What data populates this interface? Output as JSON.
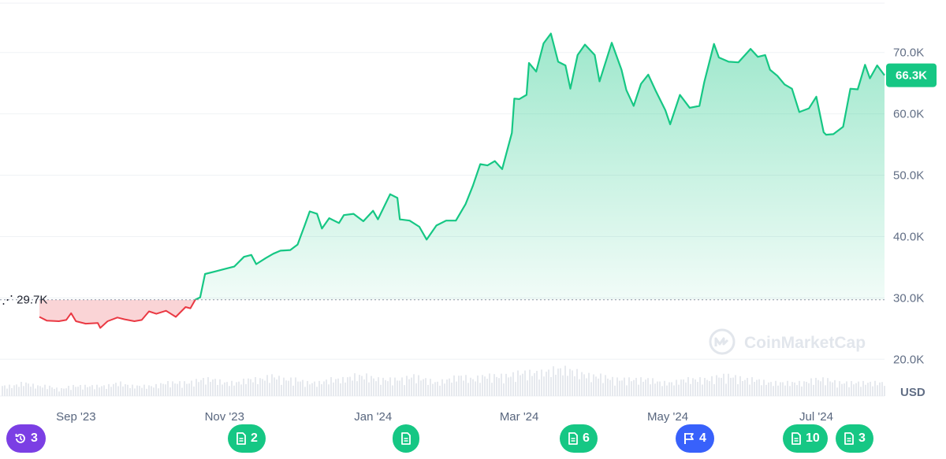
{
  "chart_data": {
    "type": "area",
    "baseline": {
      "value": 29.7,
      "label": "29.7K"
    },
    "current_price": {
      "value": 66.3,
      "label": "66.3K"
    },
    "unit": "USD",
    "ylim": [
      14,
      76
    ],
    "y_ticks": [
      {
        "value": 20,
        "label": "20.0K"
      },
      {
        "value": 30,
        "label": "30.0K"
      },
      {
        "value": 40,
        "label": "40.0K"
      },
      {
        "value": 50,
        "label": "50.0K"
      },
      {
        "value": 60,
        "label": "60.0K"
      },
      {
        "value": 70,
        "label": "70.0K"
      }
    ],
    "x_ticks": [
      "Sep '23",
      "Nov '23",
      "Jan '24",
      "Mar '24",
      "May '24",
      "Jul '24"
    ],
    "x_tick_dates": [
      "2023-09-01",
      "2023-11-01",
      "2024-01-01",
      "2024-03-01",
      "2024-05-01",
      "2024-07-01"
    ],
    "x_start": "2023-08-17",
    "x_end": "2024-07-29",
    "series": [
      {
        "values": [
          [
            "2023-08-17",
            26.9
          ],
          [
            "2023-08-20",
            26.3
          ],
          [
            "2023-08-25",
            26.2
          ],
          [
            "2023-08-28",
            26.4
          ],
          [
            "2023-08-30",
            27.5
          ],
          [
            "2023-09-01",
            26.2
          ],
          [
            "2023-09-05",
            25.8
          ],
          [
            "2023-09-10",
            25.9
          ],
          [
            "2023-09-11",
            25.1
          ],
          [
            "2023-09-14",
            26.2
          ],
          [
            "2023-09-18",
            26.8
          ],
          [
            "2023-09-21",
            26.5
          ],
          [
            "2023-09-25",
            26.2
          ],
          [
            "2023-09-28",
            26.4
          ],
          [
            "2023-10-01",
            27.8
          ],
          [
            "2023-10-04",
            27.4
          ],
          [
            "2023-10-08",
            27.9
          ],
          [
            "2023-10-12",
            26.9
          ],
          [
            "2023-10-16",
            28.5
          ],
          [
            "2023-10-18",
            28.3
          ],
          [
            "2023-10-20",
            29.7
          ],
          [
            "2023-10-22",
            30.1
          ],
          [
            "2023-10-24",
            33.9
          ],
          [
            "2023-10-28",
            34.3
          ],
          [
            "2023-11-01",
            34.7
          ],
          [
            "2023-11-05",
            35.1
          ],
          [
            "2023-11-09",
            36.7
          ],
          [
            "2023-11-12",
            37.0
          ],
          [
            "2023-11-14",
            35.5
          ],
          [
            "2023-11-18",
            36.5
          ],
          [
            "2023-11-21",
            37.2
          ],
          [
            "2023-11-24",
            37.7
          ],
          [
            "2023-11-28",
            37.8
          ],
          [
            "2023-12-01",
            38.7
          ],
          [
            "2023-12-04",
            41.9
          ],
          [
            "2023-12-06",
            44.1
          ],
          [
            "2023-12-09",
            43.7
          ],
          [
            "2023-12-11",
            41.3
          ],
          [
            "2023-12-14",
            43.0
          ],
          [
            "2023-12-18",
            42.2
          ],
          [
            "2023-12-20",
            43.5
          ],
          [
            "2023-12-24",
            43.7
          ],
          [
            "2023-12-28",
            42.5
          ],
          [
            "2024-01-01",
            44.2
          ],
          [
            "2024-01-03",
            42.8
          ],
          [
            "2024-01-08",
            46.9
          ],
          [
            "2024-01-11",
            46.3
          ],
          [
            "2024-01-12",
            42.8
          ],
          [
            "2024-01-16",
            42.6
          ],
          [
            "2024-01-20",
            41.6
          ],
          [
            "2024-01-23",
            39.5
          ],
          [
            "2024-01-27",
            41.8
          ],
          [
            "2024-01-31",
            42.6
          ],
          [
            "2024-02-04",
            42.6
          ],
          [
            "2024-02-08",
            45.3
          ],
          [
            "2024-02-11",
            48.3
          ],
          [
            "2024-02-14",
            51.8
          ],
          [
            "2024-02-17",
            51.6
          ],
          [
            "2024-02-20",
            52.3
          ],
          [
            "2024-02-23",
            51.0
          ],
          [
            "2024-02-27",
            56.9
          ],
          [
            "2024-02-28",
            62.5
          ],
          [
            "2024-03-01",
            62.4
          ],
          [
            "2024-03-04",
            63.1
          ],
          [
            "2024-03-05",
            68.3
          ],
          [
            "2024-03-08",
            66.9
          ],
          [
            "2024-03-11",
            71.5
          ],
          [
            "2024-03-14",
            73.1
          ],
          [
            "2024-03-17",
            68.5
          ],
          [
            "2024-03-20",
            67.9
          ],
          [
            "2024-03-22",
            64.1
          ],
          [
            "2024-03-25",
            69.6
          ],
          [
            "2024-03-28",
            71.3
          ],
          [
            "2024-04-01",
            69.6
          ],
          [
            "2024-04-03",
            65.3
          ],
          [
            "2024-04-08",
            71.6
          ],
          [
            "2024-04-12",
            67.2
          ],
          [
            "2024-04-14",
            63.9
          ],
          [
            "2024-04-17",
            61.3
          ],
          [
            "2024-04-20",
            64.9
          ],
          [
            "2024-04-23",
            66.4
          ],
          [
            "2024-04-26",
            63.8
          ],
          [
            "2024-04-30",
            60.6
          ],
          [
            "2024-05-02",
            58.3
          ],
          [
            "2024-05-06",
            63.1
          ],
          [
            "2024-05-10",
            61.0
          ],
          [
            "2024-05-14",
            61.3
          ],
          [
            "2024-05-16",
            65.2
          ],
          [
            "2024-05-20",
            71.4
          ],
          [
            "2024-05-22",
            69.2
          ],
          [
            "2024-05-26",
            68.5
          ],
          [
            "2024-05-30",
            68.4
          ],
          [
            "2024-06-04",
            70.6
          ],
          [
            "2024-06-07",
            69.3
          ],
          [
            "2024-06-10",
            69.6
          ],
          [
            "2024-06-12",
            67.2
          ],
          [
            "2024-06-15",
            66.2
          ],
          [
            "2024-06-18",
            64.8
          ],
          [
            "2024-06-21",
            64.1
          ],
          [
            "2024-06-24",
            60.3
          ],
          [
            "2024-06-28",
            60.9
          ],
          [
            "2024-07-01",
            62.8
          ],
          [
            "2024-07-04",
            57.0
          ],
          [
            "2024-07-05",
            56.6
          ],
          [
            "2024-07-08",
            56.7
          ],
          [
            "2024-07-12",
            57.9
          ],
          [
            "2024-07-15",
            64.1
          ],
          [
            "2024-07-18",
            64.0
          ],
          [
            "2024-07-21",
            68.0
          ],
          [
            "2024-07-23",
            65.8
          ],
          [
            "2024-07-26",
            67.9
          ],
          [
            "2024-07-29",
            66.3
          ]
        ]
      }
    ],
    "colors": {
      "up": "#16c784",
      "down": "#ea3943",
      "grid": "#eff2f5",
      "volume": "#e6e9ee"
    },
    "volume_trend": [
      3,
      3,
      4,
      3,
      3,
      2,
      3,
      3,
      3,
      3,
      4,
      3,
      3,
      3,
      4,
      4,
      4,
      5,
      5,
      4,
      4,
      5,
      5,
      6,
      5,
      5,
      4,
      4,
      5,
      5,
      6,
      6,
      5,
      5,
      5,
      6,
      5,
      4,
      5,
      6,
      5,
      6,
      6,
      6,
      7,
      7,
      7,
      8,
      8,
      7,
      6,
      6,
      5,
      5,
      5,
      5,
      4,
      4,
      5,
      5,
      5,
      6,
      6,
      5,
      5,
      4,
      4,
      4,
      4,
      5,
      5,
      4,
      4,
      4,
      4,
      4
    ]
  },
  "watermark": "CoinMarketCap",
  "badges": [
    {
      "icon": "history-icon",
      "count": "3",
      "color": "#7b3fe4"
    },
    {
      "icon": "document-icon",
      "count": "2",
      "color": "#16c784"
    },
    {
      "icon": "document-icon",
      "count": "",
      "color": "#16c784"
    },
    {
      "icon": "document-icon",
      "count": "6",
      "color": "#16c784"
    },
    {
      "icon": "flag-icon",
      "count": "4",
      "color": "#3861fb"
    },
    {
      "icon": "document-icon",
      "count": "10",
      "color": "#16c784"
    },
    {
      "icon": "document-icon",
      "count": "3",
      "color": "#16c784"
    }
  ]
}
